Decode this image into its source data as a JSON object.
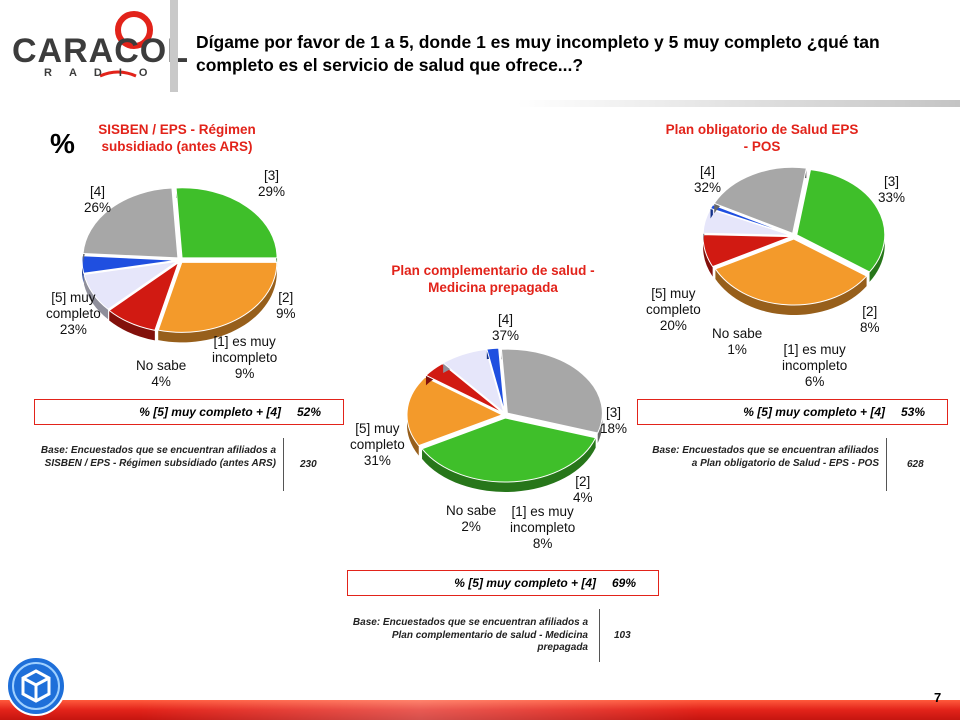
{
  "header": {
    "logo_text": "CARACOL",
    "logo_sub": "RADIO",
    "question": "Dígame por favor de 1 a 5, donde 1 es muy incompleto y 5 muy completo ¿qué tan completo es el servicio de salud que ofrece...?"
  },
  "percent_symbol": "%",
  "page_number": "7",
  "colors": {
    "accent_red": "#e2231a",
    "green": "#3fbf2a",
    "orange": "#f39a2b",
    "red": "#d11a12",
    "lavender": "#e6e6fa",
    "blue": "#1f4fe0",
    "gray": "#a7a7a7"
  },
  "chart_data": [
    {
      "type": "pie",
      "title": "SISBEN / EPS - Régimen subsidiado (antes ARS)",
      "categories": [
        "[4]",
        "[3]",
        "[2]",
        "[1] es muy incompleto",
        "No sabe",
        "[5] muy completo"
      ],
      "values": [
        26,
        29,
        9,
        9,
        4,
        23
      ],
      "labels": {
        "c4": "[4]",
        "c4v": "26%",
        "c3": "[3]",
        "c3v": "29%",
        "c2": "[2]",
        "c2v": "9%",
        "c1a": "[1] es muy",
        "c1b": "incompleto",
        "c1v": "9%",
        "ns": "No sabe",
        "nsv": "4%",
        "c5a": "[5] muy",
        "c5b": "completo",
        "c5v": "23%"
      },
      "summary_label": "% [5] muy completo + [4]",
      "summary_value": "52%",
      "base_text": "Base: Encuestados que se encuentran afiliados a SISBEN / EPS - Régimen subsidiado (antes ARS)",
      "base_n": "230"
    },
    {
      "type": "pie",
      "title": "Plan complementario de salud - Medicina prepagada",
      "categories": [
        "[4]",
        "[3]",
        "[2]",
        "[1] es muy incompleto",
        "No sabe",
        "[5] muy completo"
      ],
      "values": [
        37,
        18,
        4,
        8,
        2,
        31
      ],
      "labels": {
        "c4": "[4]",
        "c4v": "37%",
        "c3": "[3]",
        "c3v": "18%",
        "c2": "[2]",
        "c2v": "4%",
        "c1a": "[1] es muy",
        "c1b": "incompleto",
        "c1v": "8%",
        "ns": "No sabe",
        "nsv": "2%",
        "c5a": "[5] muy",
        "c5b": "completo",
        "c5v": "31%"
      },
      "summary_label": "% [5] muy completo + [4]",
      "summary_value": "69%",
      "base_text": "Base: Encuestados que se encuentran afiliados a Plan complementario de salud - Medicina prepagada",
      "base_n": "103"
    },
    {
      "type": "pie",
      "title": "Plan obligatorio de Salud EPS - POS",
      "categories": [
        "[4]",
        "[3]",
        "[2]",
        "[1] es muy incompleto",
        "No sabe",
        "[5] muy completo"
      ],
      "values": [
        32,
        33,
        8,
        6,
        1,
        20
      ],
      "labels": {
        "c4": "[4]",
        "c4v": "32%",
        "c3": "[3]",
        "c3v": "33%",
        "c2": "[2]",
        "c2v": "8%",
        "c1a": "[1] es muy",
        "c1b": "incompleto",
        "c1v": "6%",
        "ns": "No sabe",
        "nsv": "1%",
        "c5a": "[5] muy",
        "c5b": "completo",
        "c5v": "20%"
      },
      "summary_label": "% [5] muy completo + [4]",
      "summary_value": "53%",
      "base_text": "Base: Encuestados que se encuentran afiliados a Plan obligatorio de Salud - EPS - POS",
      "base_n": "628"
    }
  ]
}
